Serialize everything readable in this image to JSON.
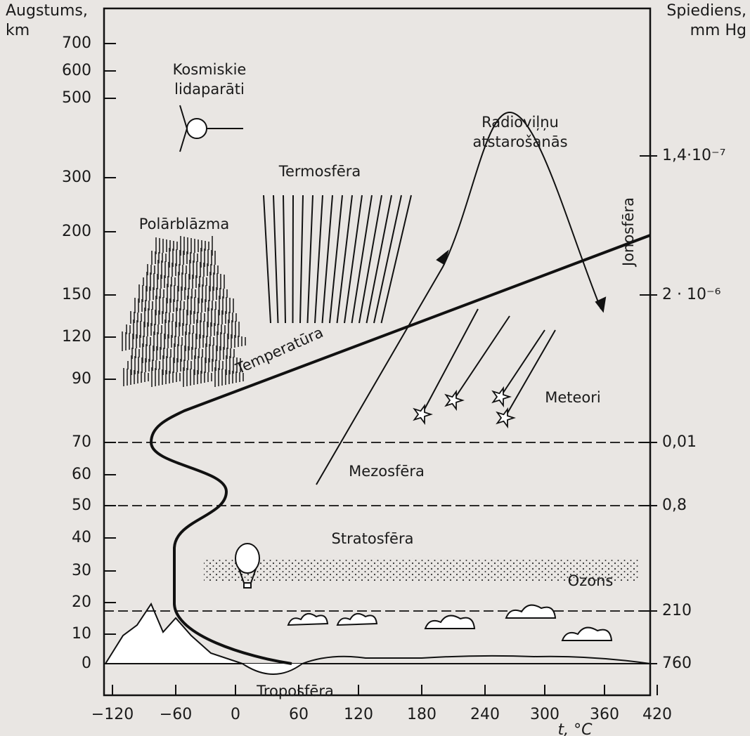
{
  "axes": {
    "left": {
      "title_lines": [
        "Augstums,",
        "km"
      ],
      "ticks": [
        "700",
        "600",
        "500",
        "300",
        "200",
        "150",
        "120",
        "90",
        "70",
        "60",
        "50",
        "40",
        "30",
        "20",
        "10",
        "0"
      ]
    },
    "right": {
      "title_lines": [
        "Spiediens,",
        "mm Hg"
      ],
      "ticks": [
        "1,4·10⁻⁷",
        "2 · 10⁻⁶",
        "0,01",
        "0,8",
        "210",
        "760"
      ]
    },
    "bottom": {
      "title": "t, °C",
      "ticks": [
        "−120",
        "−60",
        "0",
        "60",
        "120",
        "180",
        "240",
        "300",
        "360",
        "420"
      ]
    }
  },
  "labels": {
    "spacecraft": [
      "Kosmiskie",
      "lidaparāti"
    ],
    "thermosphere": "Termosfēra",
    "aurora": "Polārblāzma",
    "radio": [
      "Radioviļņu",
      "atstarošanās"
    ],
    "ionosphere": "Jonosfēra",
    "temperature": "Temperatūra",
    "meteors": "Meteori",
    "mesosphere": "Mezosfēra",
    "stratosphere": "Stratosfēra",
    "ozone": "Ozons",
    "troposphere": "Troposfēra"
  }
}
